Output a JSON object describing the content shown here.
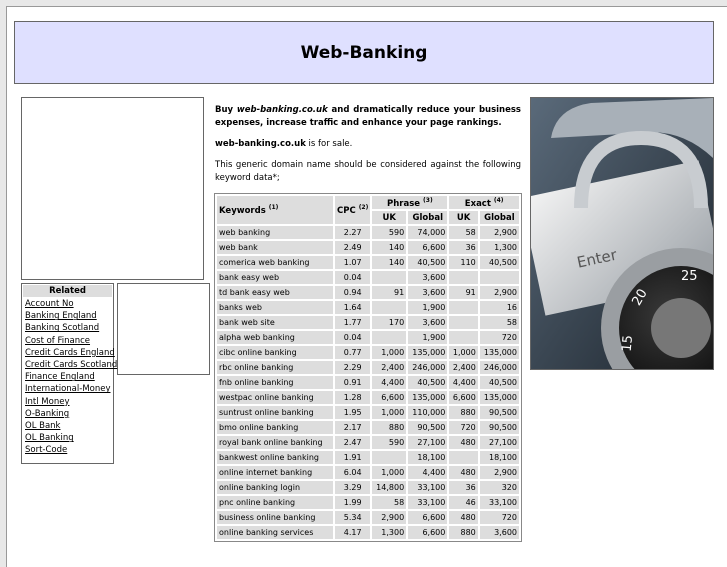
{
  "header": {
    "title": "Web-Banking"
  },
  "intro": {
    "buy_prefix": "Buy ",
    "domain_italic": "web-banking.co.uk",
    "buy_suffix": " and dramatically reduce your business expenses, increase traffic and enhance your page rankings.",
    "sale_domain": "web-banking.co.uk",
    "sale_suffix": " is for sale.",
    "generic": "This generic domain name should be considered against the following keyword data*;"
  },
  "table": {
    "headers": {
      "keywords": "Keywords",
      "kw_note": "(1)",
      "cpc": "CPC",
      "cpc_note": "(2)",
      "phrase": "Phrase",
      "phrase_note": "(3)",
      "exact": "Exact",
      "exact_note": "(4)",
      "uk": "UK",
      "global": "Global"
    },
    "rows": [
      {
        "k": "web banking",
        "cpc": "2.27",
        "puk": "590",
        "pg": "74,000",
        "euk": "58",
        "eg": "2,900"
      },
      {
        "k": "web bank",
        "cpc": "2.49",
        "puk": "140",
        "pg": "6,600",
        "euk": "36",
        "eg": "1,300"
      },
      {
        "k": "comerica web banking",
        "cpc": "1.07",
        "puk": "140",
        "pg": "40,500",
        "euk": "110",
        "eg": "40,500"
      },
      {
        "k": "bank easy web",
        "cpc": "0.04",
        "puk": "",
        "pg": "3,600",
        "euk": "",
        "eg": ""
      },
      {
        "k": "td bank easy web",
        "cpc": "0.94",
        "puk": "91",
        "pg": "3,600",
        "euk": "91",
        "eg": "2,900"
      },
      {
        "k": "banks web",
        "cpc": "1.64",
        "puk": "",
        "pg": "1,900",
        "euk": "",
        "eg": "16"
      },
      {
        "k": "bank web site",
        "cpc": "1.77",
        "puk": "170",
        "pg": "3,600",
        "euk": "",
        "eg": "58"
      },
      {
        "k": "alpha web banking",
        "cpc": "0.04",
        "puk": "",
        "pg": "1,900",
        "euk": "",
        "eg": "720"
      },
      {
        "k": "cibc online banking",
        "cpc": "0.77",
        "puk": "1,000",
        "pg": "135,000",
        "euk": "1,000",
        "eg": "135,000"
      },
      {
        "k": "rbc online banking",
        "cpc": "2.29",
        "puk": "2,400",
        "pg": "246,000",
        "euk": "2,400",
        "eg": "246,000"
      },
      {
        "k": "fnb online banking",
        "cpc": "0.91",
        "puk": "4,400",
        "pg": "40,500",
        "euk": "4,400",
        "eg": "40,500"
      },
      {
        "k": "westpac online banking",
        "cpc": "1.28",
        "puk": "6,600",
        "pg": "135,000",
        "euk": "6,600",
        "eg": "135,000"
      },
      {
        "k": "suntrust online banking",
        "cpc": "1.95",
        "puk": "1,000",
        "pg": "110,000",
        "euk": "880",
        "eg": "90,500"
      },
      {
        "k": "bmo online banking",
        "cpc": "2.17",
        "puk": "880",
        "pg": "90,500",
        "euk": "720",
        "eg": "90,500"
      },
      {
        "k": "royal bank online banking",
        "cpc": "2.47",
        "puk": "590",
        "pg": "27,100",
        "euk": "480",
        "eg": "27,100"
      },
      {
        "k": "bankwest online banking",
        "cpc": "1.91",
        "puk": "",
        "pg": "18,100",
        "euk": "",
        "eg": "18,100"
      },
      {
        "k": "online internet banking",
        "cpc": "6.04",
        "puk": "1,000",
        "pg": "4,400",
        "euk": "480",
        "eg": "2,900"
      },
      {
        "k": "online banking login",
        "cpc": "3.29",
        "puk": "14,800",
        "pg": "33,100",
        "euk": "36",
        "eg": "320"
      },
      {
        "k": "pnc online banking",
        "cpc": "1.99",
        "puk": "58",
        "pg": "33,100",
        "euk": "46",
        "eg": "33,100"
      },
      {
        "k": "business online banking",
        "cpc": "5.34",
        "puk": "2,900",
        "pg": "6,600",
        "euk": "480",
        "eg": "720"
      },
      {
        "k": "online banking services",
        "cpc": "4.17",
        "puk": "1,300",
        "pg": "6,600",
        "euk": "880",
        "eg": "3,600"
      }
    ]
  },
  "related": {
    "title": "Related",
    "links": [
      "Account No",
      "Banking England",
      "Banking Scotland",
      "Cost of Finance",
      "Credit Cards England",
      "Credit Cards Scotland",
      "Finance England",
      "International-Money",
      "Intl Money",
      "O-Banking",
      "OL Bank",
      "OL Banking",
      "Sort-Code"
    ]
  },
  "photo": {
    "key_label": "Enter",
    "dial_numbers": [
      "25",
      "20",
      "15"
    ]
  },
  "colors": {
    "header_bg": "#dfe0ff",
    "cell_bg": "#dddddd"
  }
}
